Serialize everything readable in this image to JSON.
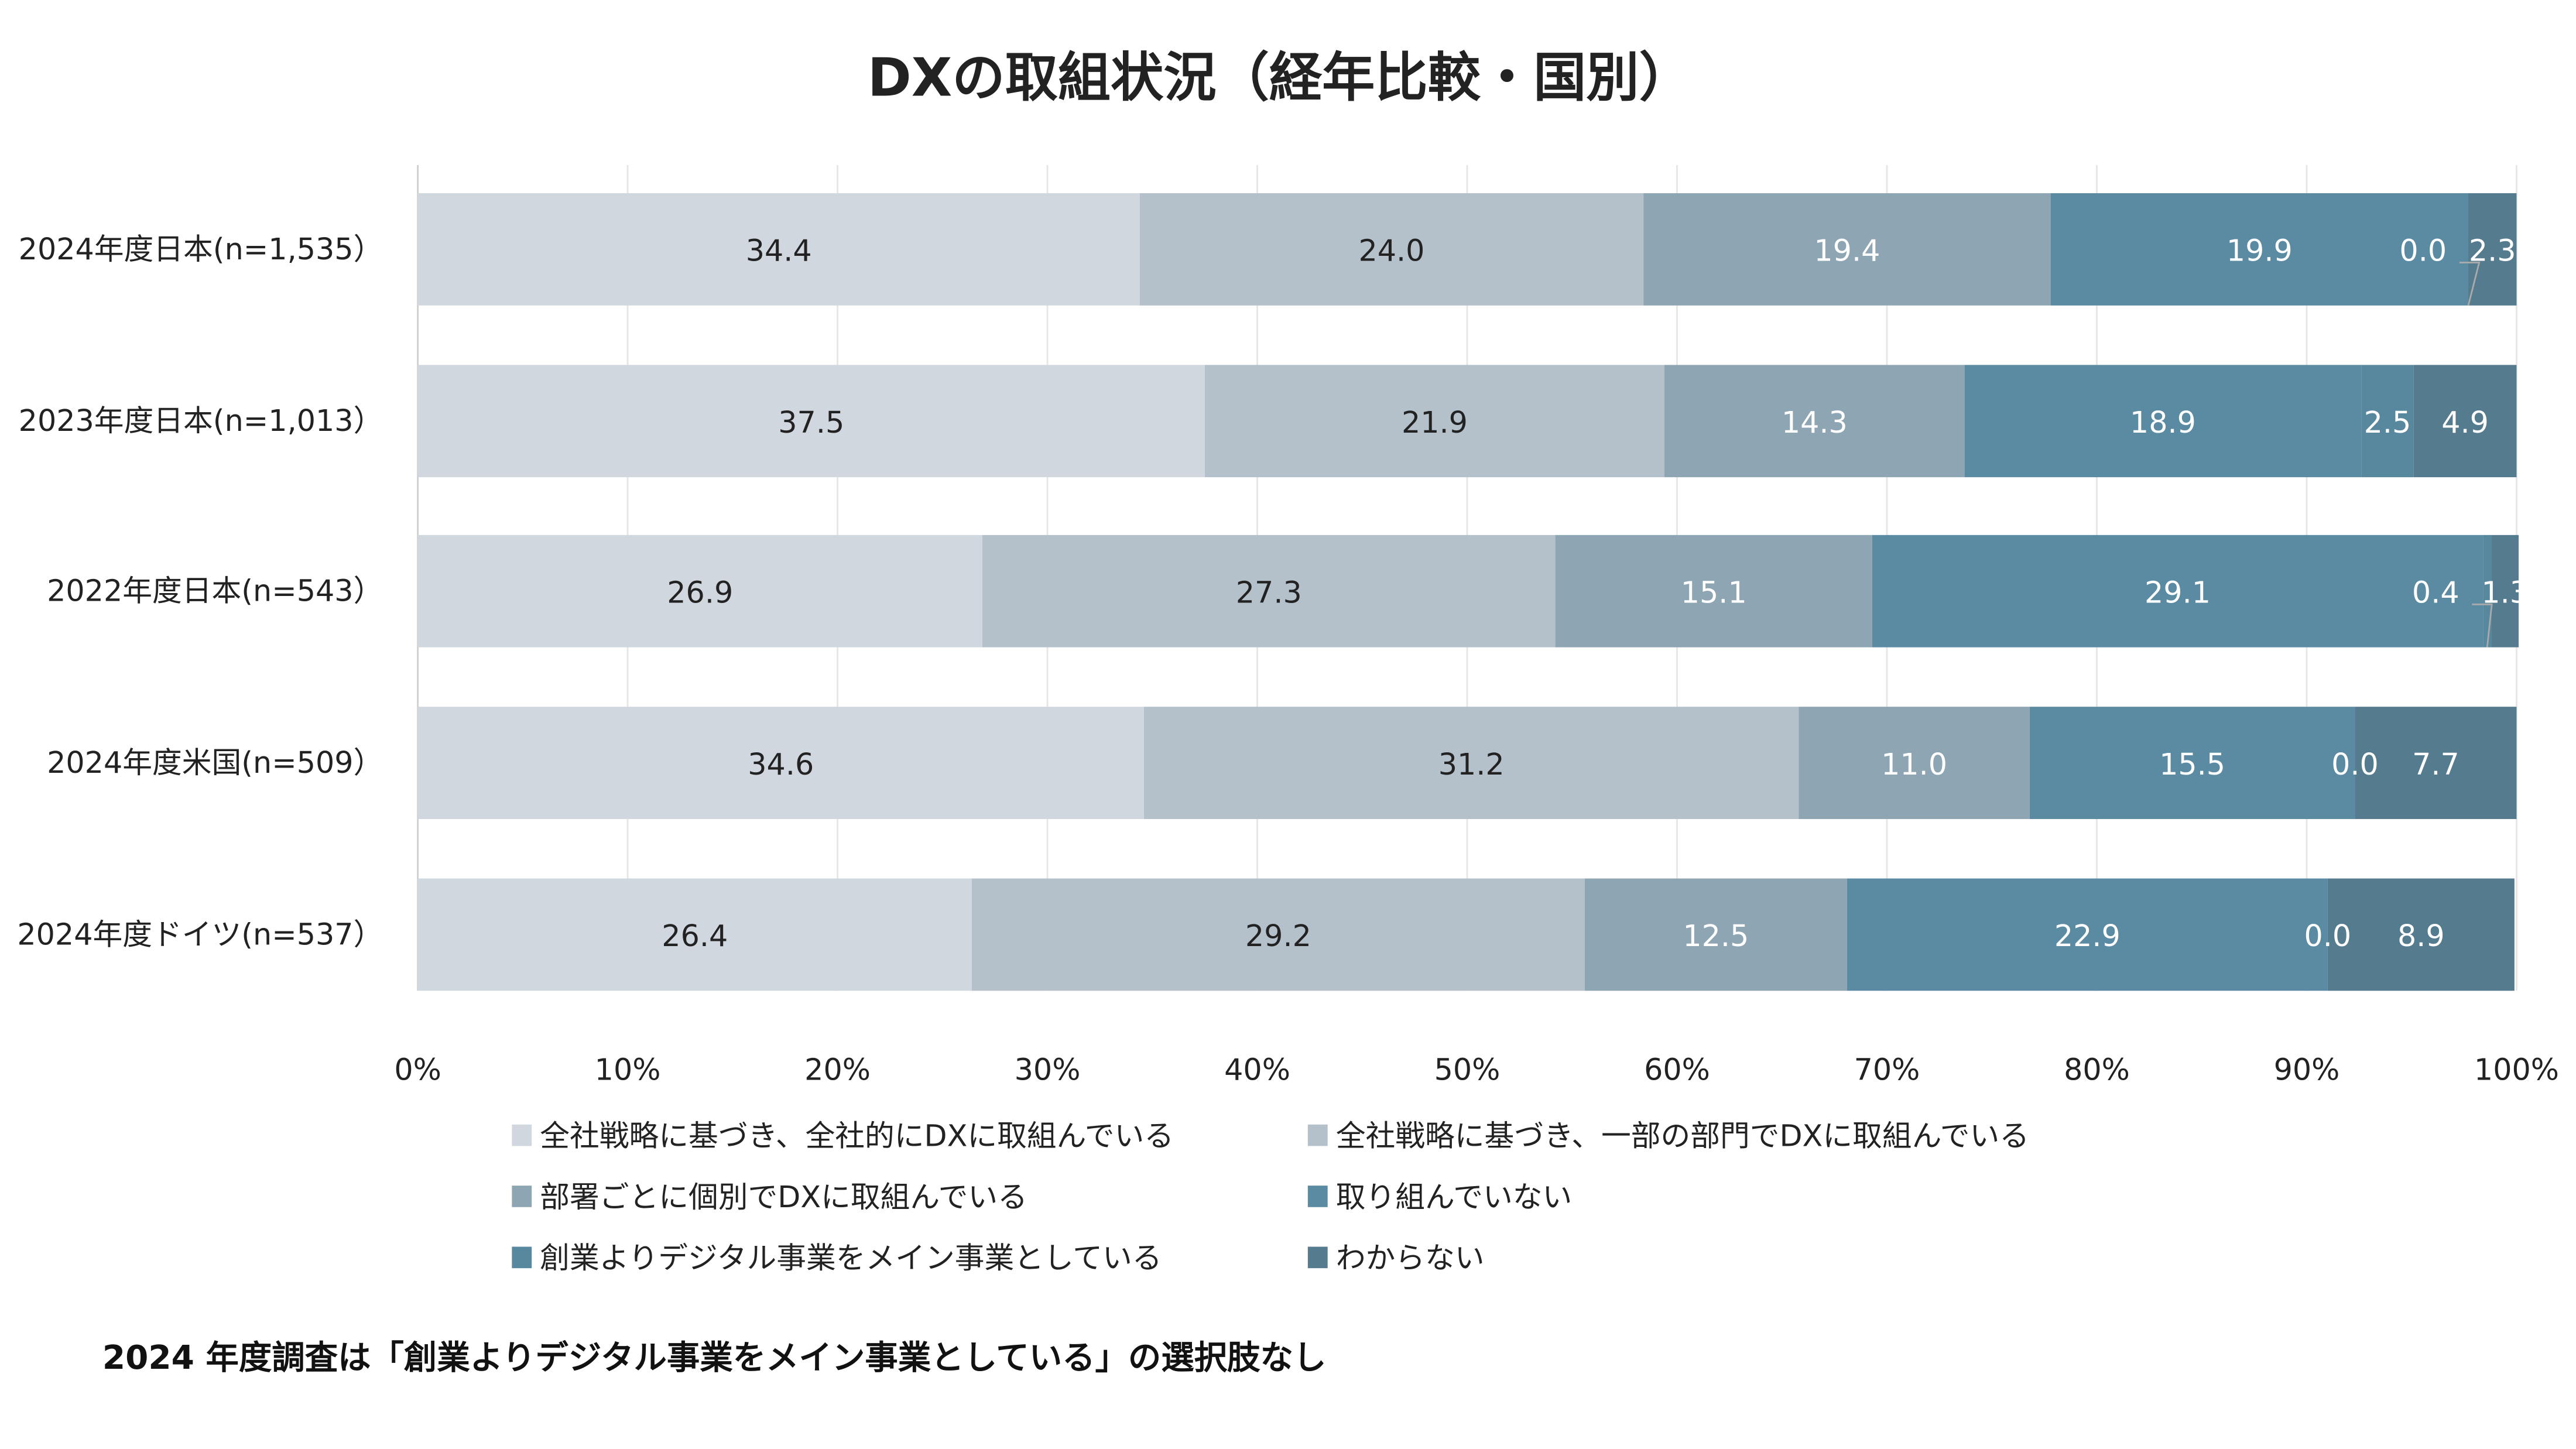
{
  "chart_data": {
    "type": "bar",
    "orientation": "horizontal",
    "stacked": true,
    "title": "DXの取組状況（経年比較・国別）",
    "categories": [
      "2024年度日本(n=1,535）",
      "2023年度日本(n=1,013）",
      "2022年度日本(n=543）",
      "2024年度米国(n=509）",
      "2024年度ドイツ(n=537）"
    ],
    "series": [
      {
        "name": "全社戦略に基づき、全社的にDXに取組んでいる",
        "color": "#d1d7df",
        "label_color": "#222222",
        "values": [
          34.4,
          37.5,
          26.9,
          34.6,
          26.4
        ]
      },
      {
        "name": "全社戦略に基づき、一部の部門でDXに取組んでいる",
        "color": "#b4c1ca",
        "label_color": "#222222",
        "values": [
          24.0,
          21.9,
          27.3,
          31.2,
          29.2
        ]
      },
      {
        "name": "部署ごとに個別でDXに取組んでいる",
        "color": "#8ea5b3",
        "label_color": "#ffffff",
        "values": [
          19.4,
          14.3,
          15.1,
          11.0,
          12.5
        ]
      },
      {
        "name": "取り組んでいない",
        "color": "#5a8ba2",
        "label_color": "#ffffff",
        "values": [
          19.9,
          18.9,
          29.1,
          15.5,
          22.9
        ]
      },
      {
        "name": "創業よりデジタル事業をメイン事業としている",
        "color": "#58889e",
        "label_color": "#ffffff",
        "values": [
          0.0,
          2.5,
          0.4,
          0.0,
          0.0
        ]
      },
      {
        "name": "わからない",
        "color": "#557b8e",
        "label_color": "#ffffff",
        "values": [
          2.3,
          4.9,
          1.3,
          7.7,
          8.9
        ]
      }
    ],
    "xlim": [
      0,
      100
    ],
    "xticks": [
      "0%",
      "10%",
      "20%",
      "30%",
      "40%",
      "50%",
      "60%",
      "70%",
      "80%",
      "90%",
      "100%"
    ],
    "grid": true,
    "legend": "bottom",
    "note": "2024 年度調査は「創業よりデジタル事業をメイン事業としている」の選択肢なし"
  }
}
